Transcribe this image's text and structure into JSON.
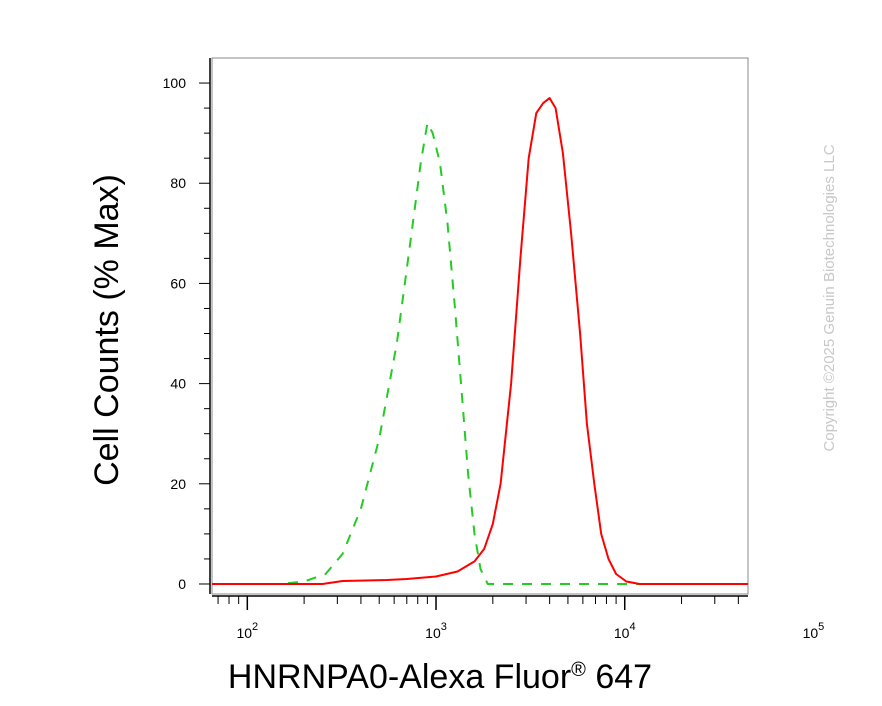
{
  "chart_data": {
    "type": "line",
    "title": "",
    "xlabel": "HNRNPA0-Alexa Fluor",
    "xlabel_mark": "®",
    "xlabel_suffix": " 647",
    "ylabel": "Cell Counts (% Max)",
    "x_scale": "log",
    "xlim": [
      65,
      45000
    ],
    "ylim": [
      -2,
      105
    ],
    "y_ticks": [
      0,
      20,
      40,
      60,
      80,
      100
    ],
    "x_ticks": [
      {
        "value": 100,
        "base": "10",
        "exp": "2"
      },
      {
        "value": 1000,
        "base": "10",
        "exp": "3"
      },
      {
        "value": 10000,
        "base": "10",
        "exp": "4"
      },
      {
        "value": 100000,
        "base": "10",
        "exp": "5"
      }
    ],
    "grid": false,
    "legend": "none",
    "series": [
      {
        "style": "dashed",
        "color": "#22cc22",
        "points": [
          [
            65,
            0
          ],
          [
            150,
            0
          ],
          [
            200,
            0.5
          ],
          [
            260,
            2
          ],
          [
            320,
            6
          ],
          [
            400,
            15
          ],
          [
            500,
            29
          ],
          [
            620,
            48
          ],
          [
            730,
            68
          ],
          [
            830,
            84
          ],
          [
            900,
            92
          ],
          [
            960,
            90
          ],
          [
            1050,
            84
          ],
          [
            1150,
            72
          ],
          [
            1260,
            55
          ],
          [
            1370,
            38
          ],
          [
            1480,
            22
          ],
          [
            1600,
            10
          ],
          [
            1720,
            3
          ],
          [
            1880,
            0
          ],
          [
            2300,
            0
          ],
          [
            45000,
            0
          ]
        ]
      },
      {
        "style": "solid",
        "color": "#ff0000",
        "points": [
          [
            65,
            0
          ],
          [
            250,
            0
          ],
          [
            320,
            0.6
          ],
          [
            550,
            0.8
          ],
          [
            700,
            1
          ],
          [
            1000,
            1.5
          ],
          [
            1300,
            2.5
          ],
          [
            1600,
            4.5
          ],
          [
            1800,
            7
          ],
          [
            2000,
            12
          ],
          [
            2200,
            20
          ],
          [
            2500,
            40
          ],
          [
            2800,
            65
          ],
          [
            3100,
            85
          ],
          [
            3400,
            94
          ],
          [
            3700,
            96
          ],
          [
            4000,
            97
          ],
          [
            4300,
            95
          ],
          [
            4700,
            86
          ],
          [
            5200,
            70
          ],
          [
            5800,
            50
          ],
          [
            6300,
            32
          ],
          [
            6900,
            20
          ],
          [
            7500,
            10
          ],
          [
            8200,
            5
          ],
          [
            9000,
            2
          ],
          [
            10200,
            0.5
          ],
          [
            12000,
            0
          ],
          [
            45000,
            0
          ]
        ]
      }
    ]
  },
  "watermark": "Copyright ©2025 Genuin Biotechnologies LLC"
}
